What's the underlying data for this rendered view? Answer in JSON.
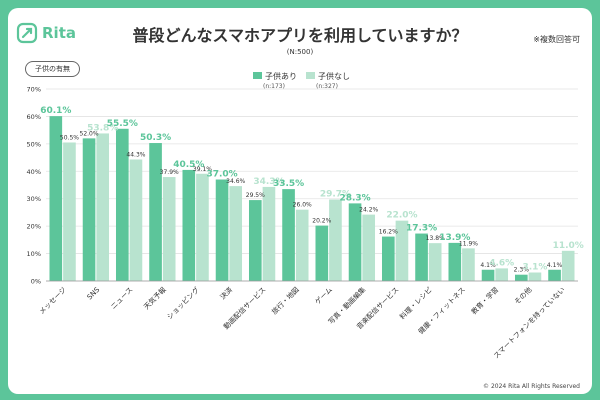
{
  "brand": {
    "logo": "Rita"
  },
  "header": {
    "title": "普段どんなスマホアプリを利用していますか？",
    "note": "※複数回答可",
    "sample": "(N:500)",
    "filter_label": "子供の有無"
  },
  "footer": {
    "copyright": "© 2024 Rita All Rights Reserved"
  },
  "colors": {
    "with_children": "#5cc59a",
    "without_children": "#b8e3cf",
    "accent": "#5cc59a"
  },
  "chart_data": {
    "type": "bar",
    "title": "普段どんなスマホアプリを利用していますか？",
    "ylim": [
      0,
      70
    ],
    "yticks": [
      "0%",
      "10%",
      "20%",
      "30%",
      "40%",
      "50%",
      "60%",
      "70%"
    ],
    "categories": [
      "メッセージ",
      "SNS",
      "ニュース",
      "天気予報",
      "ショッピング",
      "決済",
      "動画配信サービス",
      "旅行・地図",
      "ゲーム",
      "写真・動画編集",
      "音楽配信サービス",
      "料理・レシピ",
      "健康・フィットネス",
      "教育・学習",
      "その他",
      "スマートフォンを持っていない"
    ],
    "series": [
      {
        "name": "子供あり",
        "sub": "(n:173)",
        "values": [
          60.1,
          52.0,
          55.5,
          50.3,
          40.5,
          37.0,
          29.5,
          33.5,
          20.2,
          28.3,
          16.2,
          17.3,
          13.9,
          4.1,
          2.3,
          4.1
        ]
      },
      {
        "name": "子供なし",
        "sub": "(n:327)",
        "values": [
          50.5,
          53.8,
          44.3,
          37.9,
          39.1,
          34.6,
          34.3,
          26.0,
          29.7,
          24.2,
          22.0,
          13.8,
          11.9,
          4.6,
          3.1,
          11.0
        ]
      }
    ],
    "highlight_labels": [
      "60.1%",
      "53.8%",
      "55.5%",
      "50.3%",
      "40.5%",
      "37.0%",
      "34.3%",
      "33.5%",
      "29.7%",
      "28.3%",
      "22.0%",
      "17.3%",
      "13.9%",
      "4.6%",
      "3.1%",
      "11.0%"
    ],
    "highlight_series": [
      0,
      1,
      0,
      0,
      0,
      0,
      1,
      0,
      1,
      0,
      1,
      0,
      0,
      1,
      1,
      1
    ],
    "other_labels": [
      "50.5%",
      "52.0%",
      "44.3%",
      "37.9%",
      "39.1%",
      "34.6%",
      "29.5%",
      "26.0%",
      "20.2%",
      "24.2%",
      "16.2%",
      "13.8%",
      "11.9%",
      "4.1%",
      "2.3%",
      "4.1%"
    ]
  }
}
